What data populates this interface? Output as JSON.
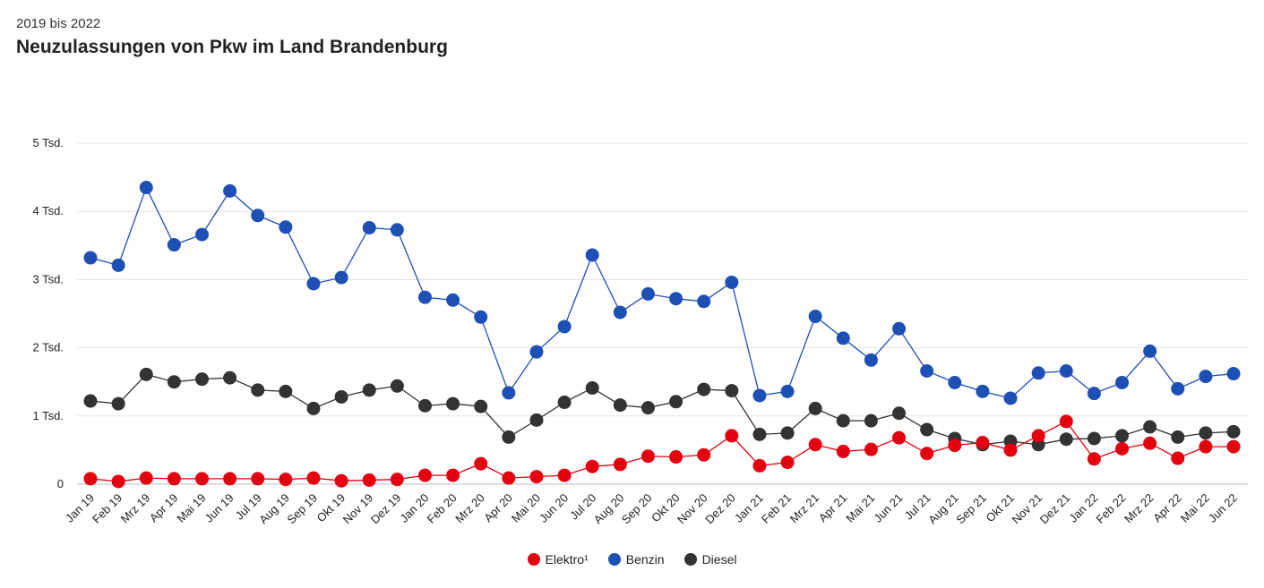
{
  "header": {
    "subtitle": "2019 bis 2022",
    "title": "Neuzulassungen von Pkw im Land Brandenburg"
  },
  "chart_data": {
    "type": "line",
    "title": "Neuzulassungen von Pkw im Land Brandenburg",
    "subtitle": "2019 bis 2022",
    "ylim": [
      0,
      5000
    ],
    "y_ticks": [
      0,
      1000,
      2000,
      3000,
      4000,
      5000
    ],
    "y_tick_labels": [
      "0",
      "1 Tsd.",
      "2 Tsd.",
      "3 Tsd.",
      "4 Tsd.",
      "5 Tsd."
    ],
    "grid": true,
    "legend_position": "bottom-center",
    "categories": [
      "Jan 19",
      "Feb 19",
      "Mrz 19",
      "Apr 19",
      "Mai 19",
      "Jun 19",
      "Jul 19",
      "Aug 19",
      "Sep 19",
      "Okt 19",
      "Nov 19",
      "Dez 19",
      "Jan 20",
      "Feb 20",
      "Mrz 20",
      "Apr 20",
      "Mai 20",
      "Jun 20",
      "Jul 20",
      "Aug 20",
      "Sep 20",
      "Okt 20",
      "Nov 20",
      "Dez 20",
      "Jan 21",
      "Feb 21",
      "Mrz 21",
      "Apr 21",
      "Mai 21",
      "Jun 21",
      "Jul 21",
      "Aug 21",
      "Sep 21",
      "Okt 21",
      "Nov 21",
      "Dez 21",
      "Jan 22",
      "Feb 22",
      "Mrz 22",
      "Apr 22",
      "Mai 22",
      "Jun 22"
    ],
    "series": [
      {
        "name": "Elektro¹",
        "color": "#e3000f",
        "values": [
          80,
          40,
          90,
          80,
          80,
          80,
          80,
          70,
          90,
          50,
          60,
          70,
          130,
          130,
          300,
          90,
          110,
          130,
          260,
          290,
          410,
          400,
          430,
          710,
          270,
          320,
          580,
          480,
          510,
          680,
          450,
          570,
          610,
          500,
          710,
          920,
          370,
          520,
          600,
          380,
          550,
          550
        ]
      },
      {
        "name": "Benzin",
        "color": "#1e4fb4",
        "values": [
          3320,
          3210,
          4350,
          3510,
          3660,
          4300,
          3940,
          3770,
          2940,
          3030,
          3760,
          3730,
          2740,
          2700,
          2450,
          1340,
          1940,
          2310,
          3360,
          2520,
          2790,
          2720,
          2680,
          2960,
          1300,
          1360,
          2460,
          2140,
          1820,
          2280,
          1660,
          1490,
          1360,
          1260,
          1630,
          1660,
          1330,
          1490,
          1950,
          1400,
          1580,
          1620
        ]
      },
      {
        "name": "Diesel",
        "color": "#333333",
        "values": [
          1220,
          1180,
          1610,
          1500,
          1540,
          1560,
          1380,
          1360,
          1110,
          1280,
          1380,
          1440,
          1150,
          1180,
          1140,
          690,
          940,
          1200,
          1410,
          1160,
          1120,
          1210,
          1390,
          1370,
          730,
          750,
          1110,
          930,
          930,
          1040,
          800,
          670,
          580,
          630,
          580,
          660,
          670,
          710,
          840,
          690,
          750,
          770
        ]
      }
    ]
  }
}
